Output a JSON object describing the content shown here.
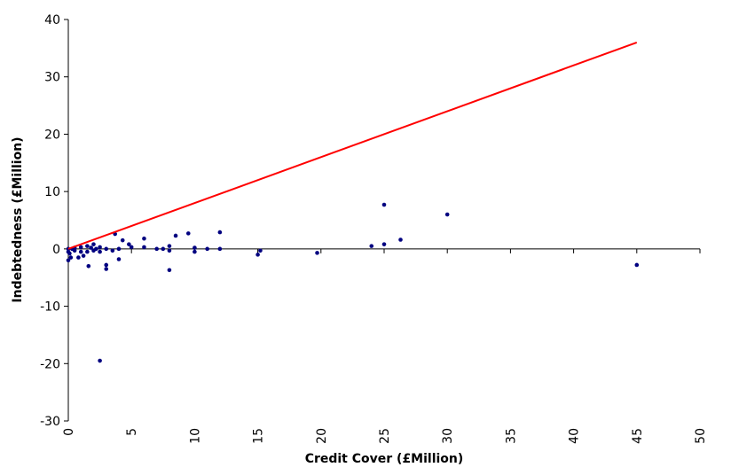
{
  "chart_data": {
    "type": "scatter",
    "x_label": "Credit Cover (£Million)",
    "y_label": "Indebtedness (£Million)",
    "xlim": [
      0,
      50
    ],
    "xticks": [
      0,
      5,
      10,
      15,
      20,
      25,
      30,
      35,
      40,
      45,
      50
    ],
    "ylim": [
      -30,
      40
    ],
    "yticks": [
      -30,
      -20,
      -10,
      0,
      10,
      20,
      30,
      40
    ],
    "series": [
      {
        "type": "scatter",
        "color": "#000080",
        "x": [
          0,
          0,
          0,
          0.1,
          0.2,
          0.3,
          0.5,
          0.5,
          0.8,
          1,
          1,
          1.2,
          1.5,
          1.5,
          1.6,
          1.8,
          2,
          2,
          2.2,
          2.5,
          2.5,
          2.5,
          3,
          3,
          3,
          3.5,
          3.7,
          4,
          4,
          4.3,
          4.8,
          5,
          6,
          6,
          7,
          7.5,
          8,
          8,
          8,
          8.5,
          9.5,
          10,
          10,
          11,
          12,
          12,
          15,
          15.2,
          19.7,
          24,
          25,
          25,
          26.3,
          30,
          45
        ],
        "values": [
          0,
          -0.5,
          -2,
          -0.8,
          -1.5,
          0,
          -0.3,
          0.2,
          -1.5,
          -0.5,
          0.3,
          -1.2,
          0.5,
          -0.5,
          -3,
          0.2,
          -0.3,
          0.8,
          0,
          -0.5,
          0.3,
          -19.5,
          -2.8,
          -3.5,
          0,
          -0.3,
          2.6,
          -1.8,
          0,
          1.5,
          0.8,
          0.3,
          1.8,
          0.3,
          0,
          0,
          -3.7,
          0.5,
          -0.3,
          2.3,
          2.7,
          0.2,
          -0.5,
          0,
          2.9,
          0,
          -1,
          -0.3,
          -0.7,
          0.5,
          7.7,
          0.8,
          1.6,
          6,
          -2.8
        ]
      },
      {
        "type": "line",
        "color": "#ff0000",
        "x": [
          0,
          45
        ],
        "values": [
          0,
          36
        ]
      }
    ]
  }
}
